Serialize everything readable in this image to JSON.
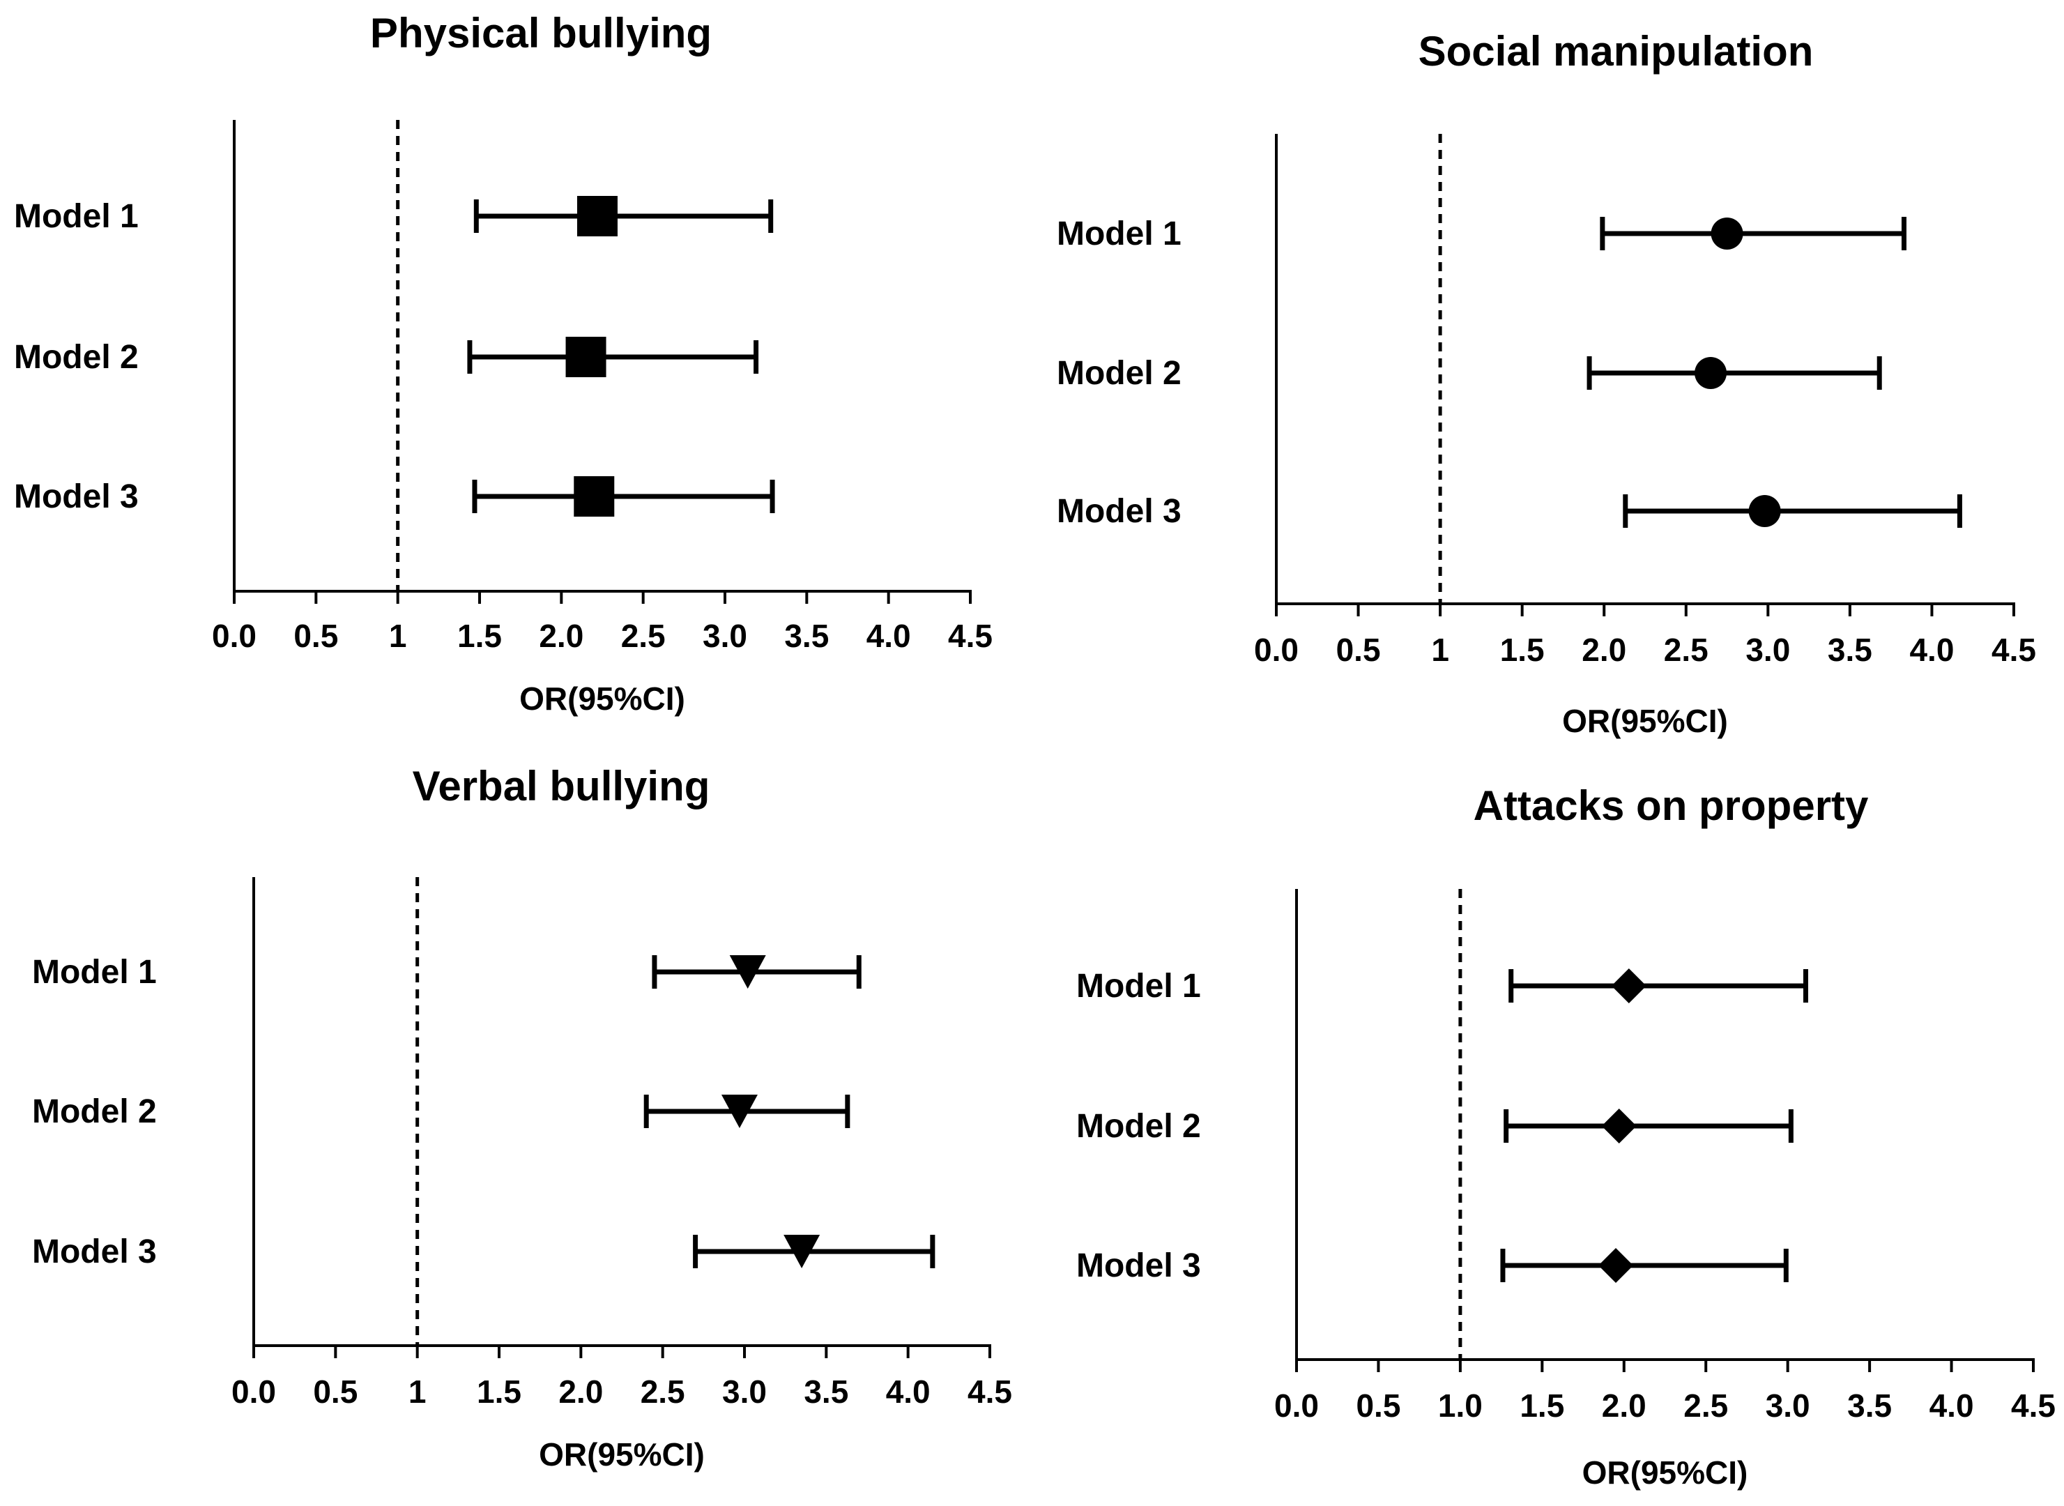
{
  "chart_data": [
    {
      "type": "forest",
      "title": "Physical bullying",
      "xlabel": "OR(95%CI)",
      "xlim": [
        0,
        4.5
      ],
      "ticks": [
        0,
        0.5,
        1,
        1.5,
        2,
        2.5,
        3,
        3.5,
        4,
        4.5
      ],
      "tick_labels": [
        "0.0",
        "0.5",
        "1",
        "1.5",
        "2.0",
        "2.5",
        "3.0",
        "3.5",
        "4.0",
        "4.5"
      ],
      "reference_line": 1,
      "marker": "square",
      "rows": [
        {
          "label": "Model 1",
          "or": 2.22,
          "lower": 1.48,
          "upper": 3.28
        },
        {
          "label": "Model 2",
          "or": 2.15,
          "lower": 1.44,
          "upper": 3.19
        },
        {
          "label": "Model 3",
          "or": 2.2,
          "lower": 1.47,
          "upper": 3.29
        }
      ]
    },
    {
      "type": "forest",
      "title": "Social manipulation",
      "xlabel": "OR(95%CI)",
      "xlim": [
        0,
        4.5
      ],
      "ticks": [
        0,
        0.5,
        1,
        1.5,
        2,
        2.5,
        3,
        3.5,
        4,
        4.5
      ],
      "tick_labels": [
        "0.0",
        "0.5",
        "1",
        "1.5",
        "2.0",
        "2.5",
        "3.0",
        "3.5",
        "4.0",
        "4.5"
      ],
      "reference_line": 1,
      "marker": "circle",
      "rows": [
        {
          "label": "Model 1",
          "or": 2.75,
          "lower": 1.99,
          "upper": 3.83
        },
        {
          "label": "Model 2",
          "or": 2.65,
          "lower": 1.91,
          "upper": 3.68
        },
        {
          "label": "Model 3",
          "or": 2.98,
          "lower": 2.13,
          "upper": 4.17
        }
      ]
    },
    {
      "type": "forest",
      "title": "Verbal bullying",
      "xlabel": "OR(95%CI)",
      "xlim": [
        0,
        4.5
      ],
      "ticks": [
        0,
        0.5,
        1,
        1.5,
        2,
        2.5,
        3,
        3.5,
        4,
        4.5
      ],
      "tick_labels": [
        "0.0",
        "0.5",
        "1",
        "1.5",
        "2.0",
        "2.5",
        "3.0",
        "3.5",
        "4.0",
        "4.5"
      ],
      "reference_line": 1,
      "marker": "triangle-down",
      "rows": [
        {
          "label": "Model 1",
          "or": 3.02,
          "lower": 2.45,
          "upper": 3.7
        },
        {
          "label": "Model 2",
          "or": 2.97,
          "lower": 2.4,
          "upper": 3.63
        },
        {
          "label": "Model 3",
          "or": 3.35,
          "lower": 2.7,
          "upper": 4.15
        }
      ]
    },
    {
      "type": "forest",
      "title": "Attacks on property",
      "xlabel": "OR(95%CI)",
      "xlim": [
        0,
        4.5
      ],
      "ticks": [
        0,
        0.5,
        1,
        1.5,
        2,
        2.5,
        3,
        3.5,
        4,
        4.5
      ],
      "tick_labels": [
        "0.0",
        "0.5",
        "1.0",
        "1.5",
        "2.0",
        "2.5",
        "3.0",
        "3.5",
        "4.0",
        "4.5"
      ],
      "reference_line": 1,
      "marker": "diamond",
      "rows": [
        {
          "label": "Model 1",
          "or": 2.03,
          "lower": 1.31,
          "upper": 3.11
        },
        {
          "label": "Model 2",
          "or": 1.97,
          "lower": 1.28,
          "upper": 3.02
        },
        {
          "label": "Model 3",
          "or": 1.95,
          "lower": 1.26,
          "upper": 2.99
        }
      ]
    }
  ]
}
